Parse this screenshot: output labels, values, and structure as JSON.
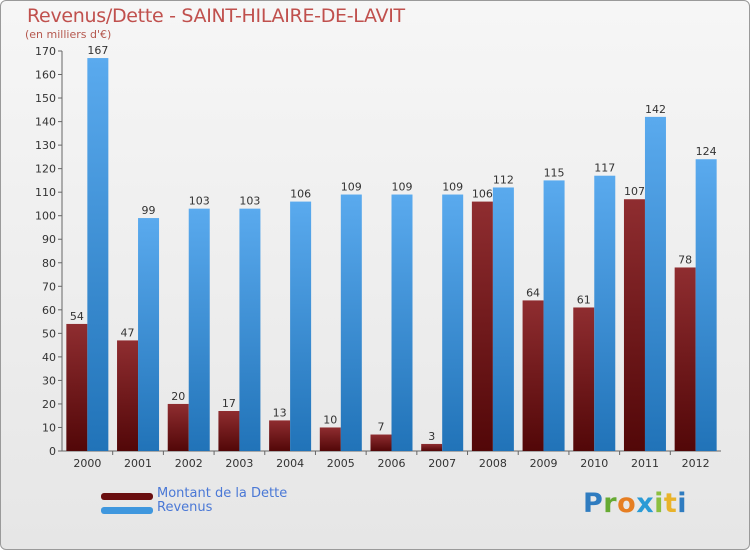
{
  "chart_data": {
    "type": "bar",
    "title": "Revenus/Dette - SAINT-HILAIRE-DE-LAVIT",
    "subtitle": "(en milliers d'€)",
    "categories": [
      "2000",
      "2001",
      "2002",
      "2003",
      "2004",
      "2005",
      "2006",
      "2007",
      "2008",
      "2009",
      "2010",
      "2011",
      "2012"
    ],
    "series": [
      {
        "name": "Montant de la Dette",
        "values": [
          54,
          47,
          20,
          17,
          13,
          10,
          7,
          3,
          106,
          64,
          61,
          107,
          78
        ],
        "color": "#7a1a1c"
      },
      {
        "name": "Revenus",
        "values": [
          167,
          99,
          103,
          103,
          106,
          109,
          109,
          109,
          112,
          115,
          117,
          142,
          124
        ],
        "color": "#3f97de"
      }
    ],
    "ylim": [
      0,
      170
    ],
    "ytick_step": 10,
    "grid": false,
    "legend_position": "bottom-left"
  },
  "logo": {
    "text": "Proxiti"
  }
}
